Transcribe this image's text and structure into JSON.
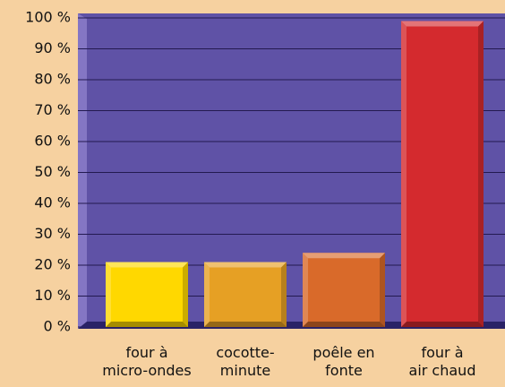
{
  "chart_data": {
    "type": "bar",
    "categories": [
      "four à\nmicro-ondes",
      "cocotte-\nminute",
      "poêle en\nfonte",
      "four à\nair chaud"
    ],
    "values": [
      21,
      21,
      24,
      99
    ],
    "colors": [
      "#ffd800",
      "#e6a024",
      "#d96a2a",
      "#d42a2e"
    ],
    "ylim": [
      0,
      100
    ],
    "yticks": [
      {
        "value": 0,
        "label": "0 %"
      },
      {
        "value": 10,
        "label": "10 %"
      },
      {
        "value": 20,
        "label": "20 %"
      },
      {
        "value": 30,
        "label": "30 %"
      },
      {
        "value": 40,
        "label": "40 %"
      },
      {
        "value": 50,
        "label": "50 %"
      },
      {
        "value": 60,
        "label": "60 %"
      },
      {
        "value": 70,
        "label": "70 %"
      },
      {
        "value": 80,
        "label": "80 %"
      },
      {
        "value": 90,
        "label": "90 %"
      },
      {
        "value": 100,
        "label": "100 %"
      }
    ],
    "grid": true
  }
}
